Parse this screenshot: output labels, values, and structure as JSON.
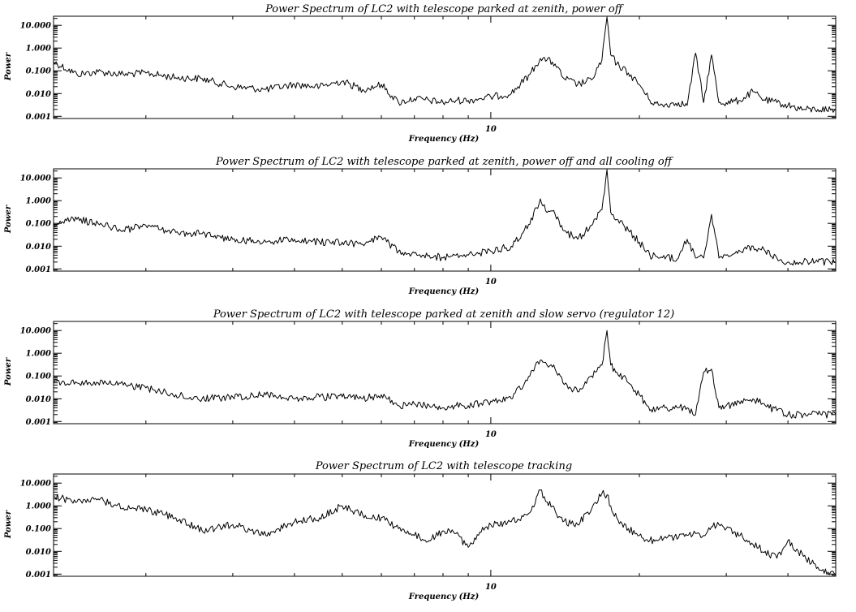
{
  "chart_data": [
    {
      "type": "line",
      "title": "Power Spectrum of LC2 with telescope parked at zenith, power off",
      "xlabel": "Frequency (Hz)",
      "ylabel": "Power",
      "xscale": "log",
      "yscale": "log",
      "xlim": [
        1.3,
        50
      ],
      "ylim": [
        0.0008,
        25
      ],
      "xticks": [
        10
      ],
      "yticks": [
        10.0,
        1.0,
        0.1,
        0.01,
        0.001
      ],
      "ytick_labels": [
        "10.000",
        "1.000",
        "0.100",
        "0.010",
        "0.001"
      ],
      "grid": false,
      "x": [
        1.3,
        1.45,
        1.6,
        1.8,
        2.0,
        2.3,
        2.6,
        3.0,
        3.5,
        4.0,
        4.5,
        5.0,
        5.5,
        6.0,
        6.5,
        7.0,
        7.5,
        8.0,
        8.5,
        9.0,
        9.5,
        10.0,
        11.0,
        12.0,
        12.6,
        13.0,
        13.5,
        14.0,
        15.0,
        16.0,
        16.8,
        17.2,
        17.5,
        18.0,
        19.0,
        20.0,
        21.0,
        22.0,
        24.0,
        25.0,
        26.0,
        27.0,
        28.0,
        29.0,
        30.0,
        32.0,
        34.0,
        36.0,
        38.0,
        40.0,
        43.0,
        46.0,
        50.0
      ],
      "y": [
        0.25,
        0.07,
        0.09,
        0.07,
        0.08,
        0.05,
        0.045,
        0.02,
        0.015,
        0.025,
        0.02,
        0.035,
        0.015,
        0.025,
        0.004,
        0.006,
        0.005,
        0.004,
        0.005,
        0.005,
        0.006,
        0.007,
        0.01,
        0.07,
        0.35,
        0.3,
        0.2,
        0.05,
        0.025,
        0.04,
        0.3,
        30.0,
        0.5,
        0.2,
        0.08,
        0.025,
        0.005,
        0.003,
        0.004,
        0.003,
        0.6,
        0.004,
        0.5,
        0.004,
        0.004,
        0.005,
        0.012,
        0.005,
        0.004,
        0.003,
        0.002,
        0.002,
        0.002
      ]
    },
    {
      "type": "line",
      "title": "Power Spectrum of LC2 with telescope parked at zenith, power off and all cooling off",
      "xlabel": "Frequency (Hz)",
      "ylabel": "Power",
      "xscale": "log",
      "yscale": "log",
      "xlim": [
        1.3,
        50
      ],
      "ylim": [
        0.0008,
        25
      ],
      "xticks": [
        10
      ],
      "yticks": [
        10.0,
        1.0,
        0.1,
        0.01,
        0.001
      ],
      "ytick_labels": [
        "10.000",
        "1.000",
        "0.100",
        "0.010",
        "0.001"
      ],
      "grid": false,
      "x": [
        1.3,
        1.45,
        1.6,
        1.8,
        2.0,
        2.3,
        2.6,
        3.0,
        3.5,
        4.0,
        4.5,
        5.0,
        5.5,
        6.0,
        6.5,
        7.0,
        7.5,
        8.0,
        8.5,
        9.0,
        9.5,
        10.0,
        11.0,
        12.0,
        12.6,
        13.0,
        13.5,
        14.0,
        15.0,
        16.0,
        16.8,
        17.2,
        17.5,
        18.0,
        19.0,
        20.0,
        21.0,
        22.0,
        24.0,
        25.0,
        26.0,
        27.0,
        28.0,
        29.0,
        30.0,
        32.0,
        34.0,
        36.0,
        38.0,
        40.0,
        43.0,
        46.0,
        50.0
      ],
      "y": [
        0.1,
        0.15,
        0.1,
        0.05,
        0.08,
        0.04,
        0.035,
        0.02,
        0.015,
        0.02,
        0.015,
        0.015,
        0.012,
        0.025,
        0.006,
        0.005,
        0.004,
        0.003,
        0.004,
        0.004,
        0.005,
        0.006,
        0.01,
        0.09,
        1.2,
        0.3,
        0.25,
        0.05,
        0.02,
        0.08,
        0.4,
        25.0,
        0.3,
        0.15,
        0.05,
        0.015,
        0.004,
        0.003,
        0.003,
        0.02,
        0.003,
        0.003,
        0.25,
        0.003,
        0.004,
        0.006,
        0.01,
        0.006,
        0.003,
        0.002,
        0.002,
        0.002,
        0.002
      ]
    },
    {
      "type": "line",
      "title": "Power Spectrum of LC2 with telescope parked at zenith and slow servo (regulator 12)",
      "xlabel": "Frequency (Hz)",
      "ylabel": "Power",
      "xscale": "log",
      "yscale": "log",
      "xlim": [
        1.3,
        50
      ],
      "ylim": [
        0.0008,
        25
      ],
      "xticks": [
        10
      ],
      "yticks": [
        10.0,
        1.0,
        0.1,
        0.01,
        0.001
      ],
      "ytick_labels": [
        "10.000",
        "1.000",
        "0.100",
        "0.010",
        "0.001"
      ],
      "grid": false,
      "x": [
        1.3,
        1.45,
        1.6,
        1.8,
        2.0,
        2.3,
        2.6,
        3.0,
        3.5,
        4.0,
        4.5,
        5.0,
        5.5,
        6.0,
        6.5,
        7.0,
        7.5,
        8.0,
        8.5,
        9.0,
        9.5,
        10.0,
        11.0,
        12.0,
        12.6,
        13.0,
        13.5,
        14.0,
        15.0,
        16.0,
        16.8,
        17.2,
        17.5,
        18.0,
        19.0,
        20.0,
        21.0,
        22.0,
        24.0,
        25.0,
        26.0,
        27.0,
        28.0,
        29.0,
        30.0,
        32.0,
        34.0,
        36.0,
        38.0,
        40.0,
        43.0,
        46.0,
        50.0
      ],
      "y": [
        0.05,
        0.05,
        0.05,
        0.04,
        0.03,
        0.015,
        0.01,
        0.012,
        0.015,
        0.01,
        0.012,
        0.012,
        0.01,
        0.015,
        0.005,
        0.006,
        0.005,
        0.004,
        0.005,
        0.005,
        0.006,
        0.008,
        0.01,
        0.1,
        0.5,
        0.3,
        0.2,
        0.05,
        0.02,
        0.1,
        0.3,
        10.0,
        0.3,
        0.15,
        0.05,
        0.015,
        0.003,
        0.004,
        0.004,
        0.004,
        0.002,
        0.15,
        0.2,
        0.004,
        0.005,
        0.006,
        0.01,
        0.005,
        0.003,
        0.002,
        0.002,
        0.002,
        0.002
      ]
    },
    {
      "type": "line",
      "title": "Power Spectrum of LC2 with telescope tracking",
      "xlabel": "Frequency (Hz)",
      "ylabel": "Power",
      "xscale": "log",
      "yscale": "log",
      "xlim": [
        1.3,
        50
      ],
      "ylim": [
        0.0008,
        25
      ],
      "xticks": [
        10
      ],
      "yticks": [
        10.0,
        1.0,
        0.1,
        0.01,
        0.001
      ],
      "ytick_labels": [
        "10.000",
        "1.000",
        "0.100",
        "0.010",
        "0.001"
      ],
      "grid": false,
      "x": [
        1.3,
        1.45,
        1.6,
        1.8,
        2.0,
        2.3,
        2.6,
        3.0,
        3.5,
        4.0,
        4.5,
        5.0,
        5.5,
        6.0,
        6.5,
        7.0,
        7.5,
        8.0,
        8.5,
        9.0,
        9.5,
        10.0,
        11.0,
        12.0,
        12.6,
        13.0,
        13.5,
        14.0,
        15.0,
        16.0,
        16.8,
        17.2,
        17.5,
        18.0,
        19.0,
        20.0,
        21.0,
        22.0,
        24.0,
        25.0,
        26.0,
        27.0,
        28.0,
        29.0,
        30.0,
        32.0,
        34.0,
        36.0,
        38.0,
        40.0,
        43.0,
        46.0,
        50.0
      ],
      "y": [
        2.5,
        1.5,
        2.0,
        0.8,
        0.7,
        0.3,
        0.08,
        0.15,
        0.05,
        0.2,
        0.3,
        1.0,
        0.4,
        0.3,
        0.1,
        0.05,
        0.03,
        0.08,
        0.06,
        0.015,
        0.07,
        0.15,
        0.2,
        0.5,
        5.0,
        1.5,
        0.6,
        0.2,
        0.15,
        0.7,
        3.5,
        3.0,
        1.0,
        0.3,
        0.1,
        0.05,
        0.03,
        0.035,
        0.04,
        0.05,
        0.06,
        0.05,
        0.12,
        0.15,
        0.1,
        0.05,
        0.02,
        0.01,
        0.005,
        0.03,
        0.006,
        0.002,
        0.001
      ]
    }
  ]
}
